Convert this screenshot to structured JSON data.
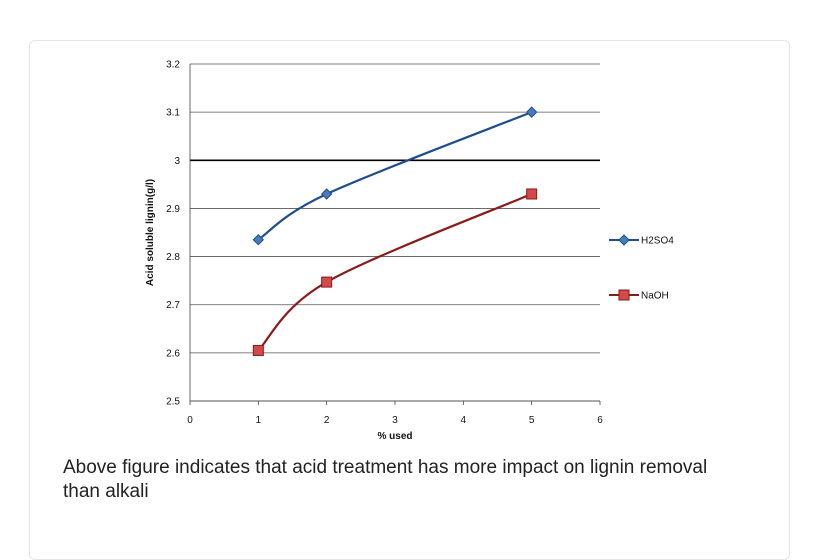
{
  "chart_data": {
    "type": "line",
    "title": "",
    "xlabel": "% used",
    "ylabel": "Acid soluble lignin(g/l)",
    "xlim": [
      0,
      6
    ],
    "ylim": [
      2.5,
      3.2
    ],
    "x_ticks": [
      "0",
      "1",
      "2",
      "3",
      "4",
      "5",
      "6"
    ],
    "y_ticks": [
      "2.5",
      "2.6",
      "2.7",
      "2.8",
      "2.9",
      "3",
      "3.1",
      "3.2"
    ],
    "reference_line": 3,
    "grid": "horizontal",
    "legend_position": "right",
    "series": [
      {
        "name": "H2SO4",
        "x": [
          1,
          2,
          5
        ],
        "values": [
          2.835,
          2.93,
          3.1
        ],
        "color": "#1f4e8c",
        "marker": "diamond"
      },
      {
        "name": "NaOH",
        "x": [
          1,
          2,
          5
        ],
        "values": [
          2.605,
          2.747,
          2.93
        ],
        "color": "#8b1a1a",
        "marker": "square"
      }
    ]
  },
  "caption": "Above figure indicates that acid treatment has more impact on lignin removal than alkali"
}
